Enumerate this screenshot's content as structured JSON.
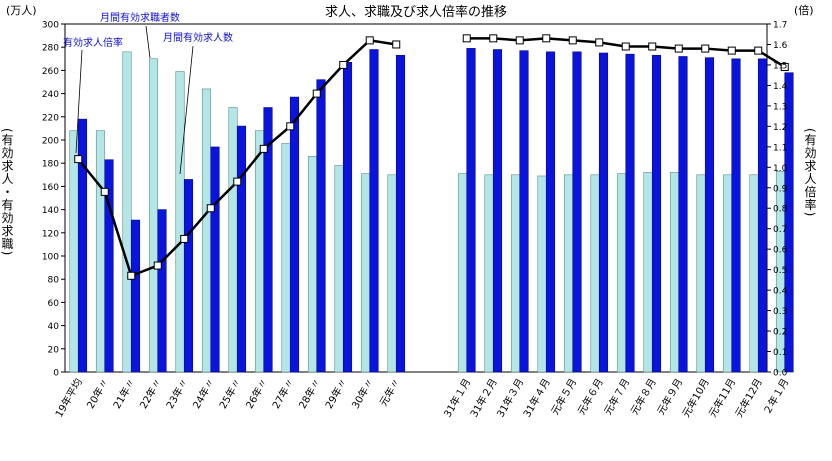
{
  "chart_data": {
    "type": "bar",
    "title": "求人、求職及び求人倍率の推移",
    "left_unit": "(万人)",
    "right_unit": "(倍)",
    "ylabel_left": "(有効求人・有効求職)",
    "ylabel_right": "(有効求人倍率)",
    "ylim_left": [
      0,
      300
    ],
    "ylim_right": [
      0.0,
      1.7
    ],
    "yticks_left": [
      "0",
      "20",
      "40",
      "60",
      "80",
      "100",
      "120",
      "140",
      "160",
      "180",
      "200",
      "220",
      "240",
      "260",
      "280",
      "300"
    ],
    "yticks_right": [
      "0.0",
      "0.1",
      "0.2",
      "0.3",
      "0.4",
      "0.5",
      "0.6",
      "0.7",
      "0.8",
      "0.9",
      "1.0",
      "1.1",
      "1.2",
      "1.3",
      "1.4",
      "1.5",
      "1.6",
      "1.7"
    ],
    "categories": [
      "19年平均",
      "20年〃",
      "21年〃",
      "22年〃",
      "23年〃",
      "24年〃",
      "25年〃",
      "26年〃",
      "27年〃",
      "28年〃",
      "29年〃",
      "30年〃",
      "元年〃",
      "31年１月",
      "31年２月",
      "31年３月",
      "31年４月",
      "元年５月",
      "元年６月",
      "元年７月",
      "元年８月",
      "元年９月",
      "元年10月",
      "元年11月",
      "元年12月",
      "２年１月"
    ],
    "series": [
      {
        "name": "月間有効求職者数",
        "type": "bar",
        "color": "#b4e6e6",
        "values": [
          208,
          208,
          276,
          270,
          259,
          244,
          228,
          208,
          197,
          186,
          178,
          171,
          170,
          171,
          170,
          170,
          169,
          170,
          170,
          171,
          172,
          172,
          170,
          170,
          170,
          173
        ]
      },
      {
        "name": "月間有効求人数",
        "type": "bar",
        "color": "#0a14dc",
        "values": [
          218,
          183,
          131,
          140,
          166,
          194,
          212,
          228,
          237,
          252,
          267,
          278,
          273,
          279,
          278,
          277,
          276,
          276,
          275,
          274,
          273,
          272,
          271,
          270,
          270,
          258
        ]
      },
      {
        "name": "有効求人倍率",
        "type": "line",
        "axis": "right",
        "color": "#000000",
        "values": [
          1.04,
          0.88,
          0.47,
          0.52,
          0.65,
          0.8,
          0.93,
          1.09,
          1.2,
          1.36,
          1.5,
          1.62,
          1.6,
          1.63,
          1.63,
          1.62,
          1.63,
          1.62,
          1.61,
          1.59,
          1.59,
          1.58,
          1.58,
          1.57,
          1.57,
          1.49
        ]
      }
    ],
    "annotations": [
      "有効求人倍率",
      "月間有効求職者数",
      "月間有効求人数"
    ],
    "grid": false,
    "legend": "none"
  }
}
